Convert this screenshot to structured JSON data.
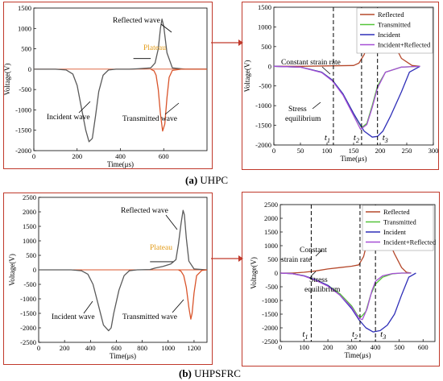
{
  "captions": {
    "a": {
      "letter": "(a)",
      "text": "UHPC"
    },
    "b": {
      "letter": "(b)",
      "text": "UHPSFRC"
    }
  },
  "colors": {
    "frame": "#c0392b",
    "reflected": "#b5482b",
    "transmitted": "#55c43a",
    "incident": "#2f2fb8",
    "incident_plus_reflected": "#a64fd6",
    "raw_signal": "#5a5a5a",
    "transmitted_raw": "#d9542b",
    "plateau": "#e39b18"
  },
  "chart_data": [
    {
      "id": "a-left",
      "type": "line",
      "xlabel": "Time(μs)",
      "ylabel": "Voltage(V)",
      "xlim": [
        0,
        800
      ],
      "ylim": [
        -2000,
        1500
      ],
      "xticks": [
        0,
        200,
        400,
        600
      ],
      "yticks": [
        -2000,
        -1500,
        -1000,
        -500,
        0,
        500,
        1000,
        1500
      ],
      "series": [
        {
          "role": "incident",
          "x": [
            0,
            100,
            150,
            180,
            200,
            220,
            240,
            255,
            270,
            285,
            300,
            320,
            345,
            380,
            440,
            480,
            540,
            560,
            575,
            585,
            592,
            600,
            615,
            640,
            700,
            800
          ],
          "y": [
            0,
            0,
            -20,
            -120,
            -400,
            -950,
            -1500,
            -1780,
            -1700,
            -1150,
            -550,
            -150,
            -20,
            0,
            0,
            10,
            30,
            150,
            500,
            1000,
            1230,
            1050,
            400,
            30,
            0,
            0
          ]
        },
        {
          "role": "transmitted",
          "x": [
            540,
            555,
            565,
            575,
            585,
            595,
            605,
            615,
            625,
            640,
            680,
            800
          ],
          "y": [
            0,
            -40,
            -150,
            -500,
            -1100,
            -1520,
            -1350,
            -700,
            -200,
            -30,
            0,
            0
          ]
        }
      ],
      "annotations": [
        "Reflected wave",
        "Incident wave",
        "Transmitted wave",
        "Plateau"
      ]
    },
    {
      "id": "a-right",
      "type": "line",
      "xlabel": "Time(μs)",
      "ylabel": "Voltage(V)",
      "xlim": [
        0,
        300
      ],
      "ylim": [
        -2000,
        1500
      ],
      "xticks": [
        0,
        50,
        100,
        150,
        200,
        250,
        300
      ],
      "yticks": [
        -2000,
        -1500,
        -1000,
        -500,
        0,
        500,
        1000,
        1500
      ],
      "series": [
        {
          "name": "Reflected",
          "x": [
            0,
            50,
            100,
            150,
            160,
            170,
            180,
            190,
            198,
            210,
            225,
            240,
            260,
            275
          ],
          "y": [
            0,
            0,
            10,
            20,
            80,
            300,
            700,
            1100,
            1250,
            1100,
            600,
            200,
            20,
            0
          ]
        },
        {
          "name": "Transmitted",
          "x": [
            0,
            50,
            90,
            110,
            130,
            150,
            165,
            175,
            185,
            195,
            210,
            240,
            275
          ],
          "y": [
            0,
            -20,
            -150,
            -350,
            -700,
            -1200,
            -1560,
            -1450,
            -1000,
            -500,
            -150,
            -20,
            0
          ]
        },
        {
          "name": "Incident",
          "x": [
            0,
            50,
            90,
            110,
            130,
            150,
            170,
            185,
            195,
            205,
            220,
            240,
            255,
            275
          ],
          "y": [
            0,
            -20,
            -150,
            -350,
            -700,
            -1200,
            -1650,
            -1800,
            -1780,
            -1650,
            -1250,
            -650,
            -150,
            0
          ]
        },
        {
          "name": "Incident+Reflected",
          "x": [
            0,
            50,
            90,
            110,
            130,
            150,
            163,
            175,
            185,
            195,
            210,
            240,
            275
          ],
          "y": [
            0,
            -20,
            -160,
            -370,
            -730,
            -1250,
            -1600,
            -1480,
            -1050,
            -550,
            -150,
            -20,
            0
          ]
        }
      ],
      "vlines": [
        112,
        165,
        195
      ],
      "vline_labels": [
        "t1",
        "t2",
        "t3"
      ],
      "annotations": [
        "Constant strain rate",
        "Stress equilibrium"
      ],
      "legend": "top-right"
    },
    {
      "id": "b-left",
      "type": "line",
      "xlabel": "Time(μs)",
      "ylabel": "Voltage(V)",
      "xlim": [
        0,
        1300
      ],
      "ylim": [
        -2500,
        2500
      ],
      "xticks": [
        0,
        200,
        400,
        600,
        800,
        1000,
        1200
      ],
      "yticks": [
        -2500,
        -2000,
        -1500,
        -1000,
        -500,
        0,
        500,
        1000,
        1500,
        2000,
        2500
      ],
      "series": [
        {
          "role": "incident",
          "x": [
            0,
            250,
            330,
            380,
            420,
            460,
            500,
            540,
            560,
            580,
            620,
            660,
            700,
            760,
            860,
            900,
            960,
            1020,
            1060,
            1080,
            1100,
            1115,
            1125,
            1140,
            1160,
            1200,
            1300
          ],
          "y": [
            0,
            0,
            -30,
            -150,
            -500,
            -1200,
            -1900,
            -2100,
            -2000,
            -1500,
            -700,
            -200,
            -30,
            0,
            10,
            60,
            120,
            200,
            350,
            900,
            1600,
            2050,
            1900,
            1100,
            300,
            30,
            0
          ]
        },
        {
          "role": "transmitted",
          "x": [
            1080,
            1100,
            1120,
            1140,
            1160,
            1175,
            1185,
            1200,
            1220,
            1260,
            1300
          ],
          "y": [
            0,
            -50,
            -200,
            -600,
            -1300,
            -1700,
            -1500,
            -800,
            -200,
            -20,
            0
          ]
        }
      ],
      "annotations": [
        "Reflected wave",
        "Incident wave",
        "Transmitted wave",
        "Plateau"
      ]
    },
    {
      "id": "b-right",
      "type": "line",
      "xlabel": "Time(μs)",
      "ylabel": "Voltage(V)",
      "xlim": [
        0,
        650
      ],
      "ylim": [
        -2500,
        2500
      ],
      "xticks": [
        0,
        100,
        200,
        300,
        400,
        500,
        600
      ],
      "yticks": [
        -2500,
        -2000,
        -1500,
        -1000,
        -500,
        0,
        500,
        1000,
        1500,
        2000,
        2500
      ],
      "series": [
        {
          "name": "Reflected",
          "x": [
            0,
            50,
            100,
            150,
            200,
            250,
            300,
            330,
            350,
            370,
            390,
            400,
            420,
            450,
            480,
            510,
            530,
            550
          ],
          "y": [
            0,
            0,
            30,
            80,
            150,
            200,
            250,
            300,
            600,
            1300,
            1900,
            2050,
            1800,
            1300,
            700,
            200,
            30,
            0
          ]
        },
        {
          "name": "Transmitted",
          "x": [
            0,
            50,
            100,
            150,
            200,
            250,
            300,
            325,
            340,
            360,
            380,
            400,
            430,
            470,
            510,
            550
          ],
          "y": [
            0,
            -20,
            -100,
            -250,
            -450,
            -750,
            -1200,
            -1550,
            -1600,
            -1400,
            -800,
            -400,
            -150,
            -30,
            0,
            0
          ]
        },
        {
          "name": "Incident",
          "x": [
            0,
            50,
            100,
            150,
            200,
            250,
            300,
            330,
            360,
            390,
            420,
            450,
            480,
            510,
            540,
            570
          ],
          "y": [
            0,
            -20,
            -100,
            -250,
            -450,
            -800,
            -1300,
            -1700,
            -2000,
            -2150,
            -2100,
            -1900,
            -1500,
            -800,
            -150,
            0
          ]
        },
        {
          "name": "Incident+Reflected",
          "x": [
            0,
            50,
            100,
            150,
            200,
            250,
            300,
            330,
            345,
            365,
            385,
            400,
            430,
            470,
            510,
            550
          ],
          "y": [
            0,
            -20,
            -110,
            -270,
            -480,
            -800,
            -1250,
            -1650,
            -1700,
            -1300,
            -650,
            -300,
            -100,
            -20,
            0,
            0
          ]
        }
      ],
      "vlines": [
        130,
        335,
        400
      ],
      "vline_labels": [
        "t1",
        "t2",
        "t3"
      ],
      "annotations": [
        "Constant strain rate",
        "Stress equilibrium"
      ],
      "legend": "top-right"
    }
  ]
}
